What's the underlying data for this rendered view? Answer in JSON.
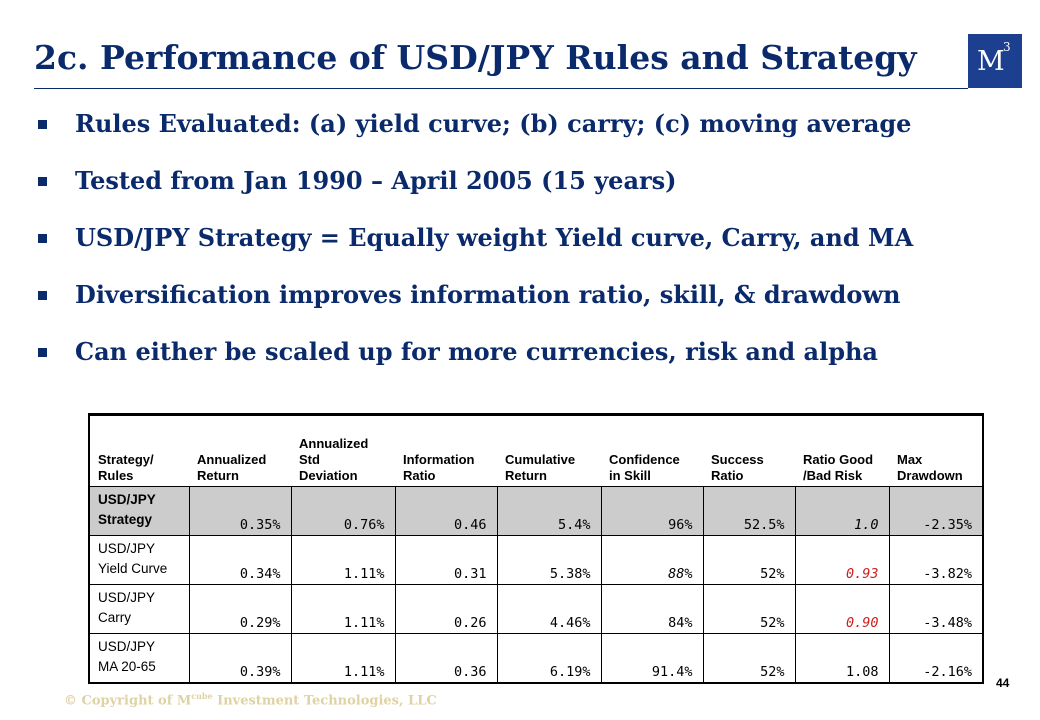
{
  "title": "2c. Performance of USD/JPY Rules and Strategy",
  "logo": {
    "letter": "M",
    "sup": "3"
  },
  "bullets": [
    "Rules Evaluated: (a) yield curve; (b) carry; (c) moving average",
    "Tested from Jan 1990 – April 2005 (15 years)",
    "USD/JPY Strategy = Equally weight Yield curve, Carry, and MA",
    "Diversification improves information ratio, skill, & drawdown",
    "Can either be scaled up for more currencies, risk and alpha"
  ],
  "table": {
    "headers": [
      [
        "",
        "Strategy/",
        "Rules"
      ],
      [
        "",
        "Annualized",
        "Return"
      ],
      [
        "Annualized",
        "Std",
        "Deviation"
      ],
      [
        "",
        "Information",
        "Ratio"
      ],
      [
        "",
        "Cumulative",
        "Return"
      ],
      [
        "",
        "Confidence",
        "in Skill"
      ],
      [
        "",
        "Success",
        "Ratio"
      ],
      [
        "",
        "Ratio Good",
        "/Bad Risk"
      ],
      [
        "",
        "Max",
        "Drawdown"
      ]
    ],
    "rows": [
      {
        "name": [
          "USD/JPY",
          "Strategy"
        ],
        "values": [
          "0.35%",
          "0.76%",
          "0.46",
          "5.4%",
          "96%",
          "52.5%",
          "1.0",
          "-2.35%"
        ]
      },
      {
        "name": [
          "USD/JPY",
          "Yield Curve"
        ],
        "values": [
          "0.34%",
          "1.11%",
          "0.31",
          "5.38%",
          "88%",
          "52%",
          "0.93",
          "-3.82%"
        ]
      },
      {
        "name": [
          "USD/JPY",
          "Carry"
        ],
        "values": [
          "0.29%",
          "1.11%",
          "0.26",
          "4.46%",
          "84%",
          "52%",
          "0.90",
          "-3.48%"
        ]
      },
      {
        "name": [
          "USD/JPY",
          "MA 20-65"
        ],
        "values": [
          "0.39%",
          "1.11%",
          "0.36",
          "6.19%",
          "91.4%",
          "52%",
          "1.08",
          "-2.16%"
        ]
      }
    ]
  },
  "footer": {
    "copyright_prefix": "© Copyright of M",
    "copyright_sup": "cube",
    "copyright_suffix": " Investment Technologies, LLC",
    "page_number": "44"
  },
  "colors": {
    "title": "#0a2a6b",
    "logo_bg": "#1c3f8f",
    "highlight_row": "#cccccc",
    "red_value": "#cc2020",
    "copyright": "#dfd2a3"
  }
}
